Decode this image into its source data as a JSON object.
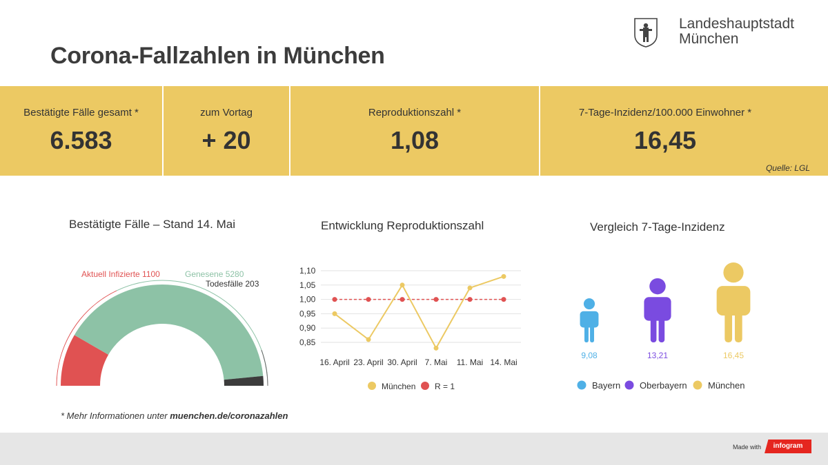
{
  "header": {
    "title": "Corona-Fallzahlen in München",
    "logo_line1": "Landeshauptstadt",
    "logo_line2": "München"
  },
  "kpis": [
    {
      "label": "Bestätigte Fälle gesamt *",
      "value": "6.583"
    },
    {
      "label": "zum Vortag",
      "value": "+ 20"
    },
    {
      "label": "Reproduktionszahl *",
      "value": "1,08"
    },
    {
      "label": "7-Tage-Inzidenz/100.000 Einwohner *",
      "value": "16,45"
    }
  ],
  "source": "Quelle: LGL",
  "colors": {
    "band": "#ecc963",
    "infected": "#e05252",
    "recovered": "#8dc2a6",
    "deaths": "#3c3c3c",
    "bayern": "#4fb0e6",
    "oberbayern": "#7a4be0",
    "muenchen": "#ecc963",
    "r_line": "#e05252"
  },
  "chart_data": [
    {
      "type": "gauge",
      "title": "Bestätigte Fälle – Stand 14. Mai",
      "segments": [
        {
          "name": "Aktuell Infizierte",
          "value": 1100,
          "label": "Aktuell Infizierte 1100"
        },
        {
          "name": "Genesene",
          "value": 5280,
          "label": "Genesene 5280"
        },
        {
          "name": "Todesfälle",
          "value": 203,
          "label": "Todesfälle 203"
        }
      ]
    },
    {
      "type": "line",
      "title": "Entwicklung Reproduktionszahl",
      "x": [
        "16. April",
        "23. April",
        "30. April",
        "7. Mai",
        "11. Mai",
        "14. Mai"
      ],
      "ylim": [
        0.85,
        1.1
      ],
      "yticks": [
        "1,10",
        "1,05",
        "1,00",
        "0,95",
        "0,90",
        "0,85"
      ],
      "series": [
        {
          "name": "München",
          "values": [
            0.95,
            0.86,
            1.05,
            0.83,
            1.04,
            1.08
          ]
        },
        {
          "name": "R = 1",
          "values": [
            1.0,
            1.0,
            1.0,
            1.0,
            1.0,
            1.0
          ]
        }
      ],
      "legend": "bottom"
    },
    {
      "type": "pictogram",
      "title": "Vergleich 7-Tage-Inzidenz",
      "categories": [
        "Bayern",
        "Oberbayern",
        "München"
      ],
      "values": [
        9.08,
        13.21,
        16.45
      ],
      "value_labels": [
        "9,08",
        "13,21",
        "16,45"
      ],
      "legend": "bottom"
    }
  ],
  "footnote": {
    "prefix": "* Mehr Informationen unter ",
    "link": "muenchen.de/coronazahlen"
  },
  "footer": {
    "made_with": "Made with",
    "brand": "infogram"
  }
}
